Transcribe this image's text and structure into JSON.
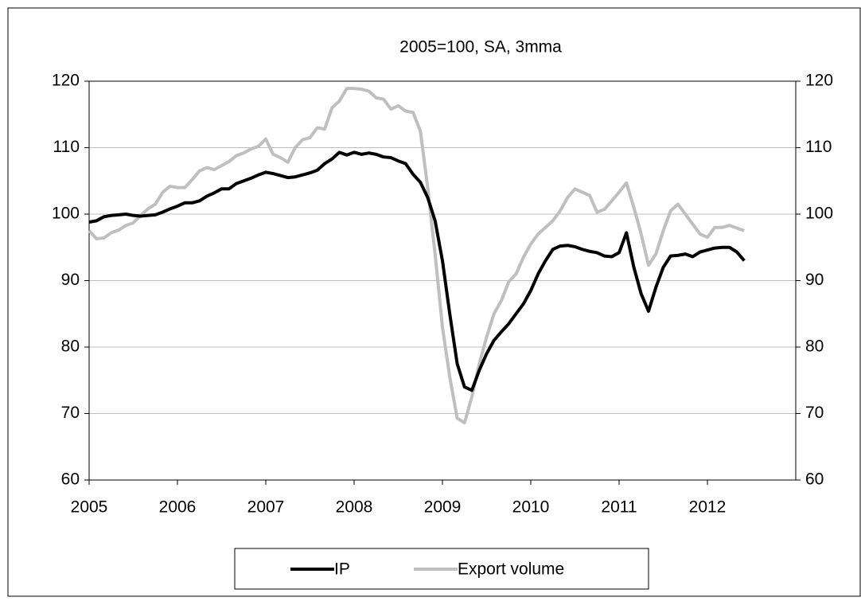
{
  "chart_data": {
    "type": "line",
    "title": "2005=100, SA,  3mma",
    "x": [
      2005.0,
      2005.083,
      2005.167,
      2005.25,
      2005.333,
      2005.417,
      2005.5,
      2005.583,
      2005.667,
      2005.75,
      2005.833,
      2005.917,
      2006.0,
      2006.083,
      2006.167,
      2006.25,
      2006.333,
      2006.417,
      2006.5,
      2006.583,
      2006.667,
      2006.75,
      2006.833,
      2006.917,
      2007.0,
      2007.083,
      2007.167,
      2007.25,
      2007.333,
      2007.417,
      2007.5,
      2007.583,
      2007.667,
      2007.75,
      2007.833,
      2007.917,
      2008.0,
      2008.083,
      2008.167,
      2008.25,
      2008.333,
      2008.417,
      2008.5,
      2008.583,
      2008.667,
      2008.75,
      2008.833,
      2008.917,
      2009.0,
      2009.083,
      2009.167,
      2009.25,
      2009.333,
      2009.417,
      2009.5,
      2009.583,
      2009.667,
      2009.75,
      2009.833,
      2009.917,
      2010.0,
      2010.083,
      2010.167,
      2010.25,
      2010.333,
      2010.417,
      2010.5,
      2010.583,
      2010.667,
      2010.75,
      2010.833,
      2010.917,
      2011.0,
      2011.083,
      2011.167,
      2011.25,
      2011.333,
      2011.417,
      2011.5,
      2011.583,
      2011.667,
      2011.75,
      2011.833,
      2011.917,
      2012.0,
      2012.083,
      2012.167,
      2012.25,
      2012.333,
      2012.417
    ],
    "series": [
      {
        "name": "IP",
        "color": "#000000",
        "values": [
          98.8,
          99.0,
          99.6,
          99.8,
          99.9,
          100.0,
          99.8,
          99.7,
          99.8,
          99.9,
          100.3,
          100.8,
          101.2,
          101.7,
          101.7,
          102.0,
          102.7,
          103.2,
          103.8,
          103.8,
          104.6,
          105.0,
          105.4,
          105.9,
          106.3,
          106.1,
          105.8,
          105.5,
          105.6,
          105.9,
          106.2,
          106.6,
          107.6,
          108.3,
          109.3,
          108.9,
          109.3,
          109.0,
          109.2,
          109.0,
          108.6,
          108.5,
          108.0,
          107.6,
          106.0,
          104.8,
          102.5,
          99.0,
          93.0,
          85.0,
          77.5,
          74.0,
          73.5,
          76.5,
          79.0,
          81.0,
          82.3,
          83.5,
          85.0,
          86.5,
          88.5,
          91.0,
          93.0,
          94.7,
          95.2,
          95.3,
          95.1,
          94.7,
          94.4,
          94.2,
          93.7,
          93.6,
          94.2,
          97.2,
          92.0,
          88.0,
          85.4,
          89.0,
          92.0,
          93.7,
          93.8,
          94.0,
          93.6,
          94.3,
          94.6,
          94.9,
          95.0,
          95.0,
          94.3,
          93.0
        ]
      },
      {
        "name": "Export volume",
        "color": "#bfbfbf",
        "values": [
          97.5,
          96.3,
          96.4,
          97.2,
          97.6,
          98.3,
          98.7,
          99.8,
          100.8,
          101.5,
          103.3,
          104.2,
          104.0,
          104.0,
          105.2,
          106.5,
          107.0,
          106.7,
          107.3,
          107.9,
          108.8,
          109.2,
          109.8,
          110.2,
          111.3,
          109.0,
          108.5,
          107.8,
          110.0,
          111.2,
          111.5,
          113.0,
          112.8,
          116.0,
          117.0,
          118.9,
          118.9,
          118.8,
          118.5,
          117.5,
          117.3,
          115.8,
          116.3,
          115.5,
          115.3,
          112.5,
          104.0,
          94.0,
          83.0,
          75.5,
          69.3,
          68.6,
          72.5,
          77.5,
          81.5,
          85.0,
          87.0,
          89.8,
          91.0,
          93.5,
          95.5,
          97.0,
          98.0,
          99.0,
          100.5,
          102.5,
          103.8,
          103.3,
          102.8,
          100.3,
          100.7,
          102.0,
          103.3,
          104.7,
          101.0,
          97.0,
          92.3,
          94.0,
          97.5,
          100.5,
          101.5,
          100.0,
          98.5,
          97.0,
          96.5,
          98.0,
          98.0,
          98.3,
          97.9,
          97.5
        ]
      }
    ],
    "xlim": [
      2005,
      2013
    ],
    "xticks": [
      2005,
      2006,
      2007,
      2008,
      2009,
      2010,
      2011,
      2012
    ],
    "ylim": [
      60,
      120
    ],
    "yticks": [
      60,
      70,
      80,
      90,
      100,
      110,
      120
    ],
    "y2lim": [
      60,
      120
    ],
    "y2ticks": [
      60,
      70,
      80,
      90,
      100,
      110,
      120
    ],
    "grid": true,
    "legend": "bottom"
  }
}
